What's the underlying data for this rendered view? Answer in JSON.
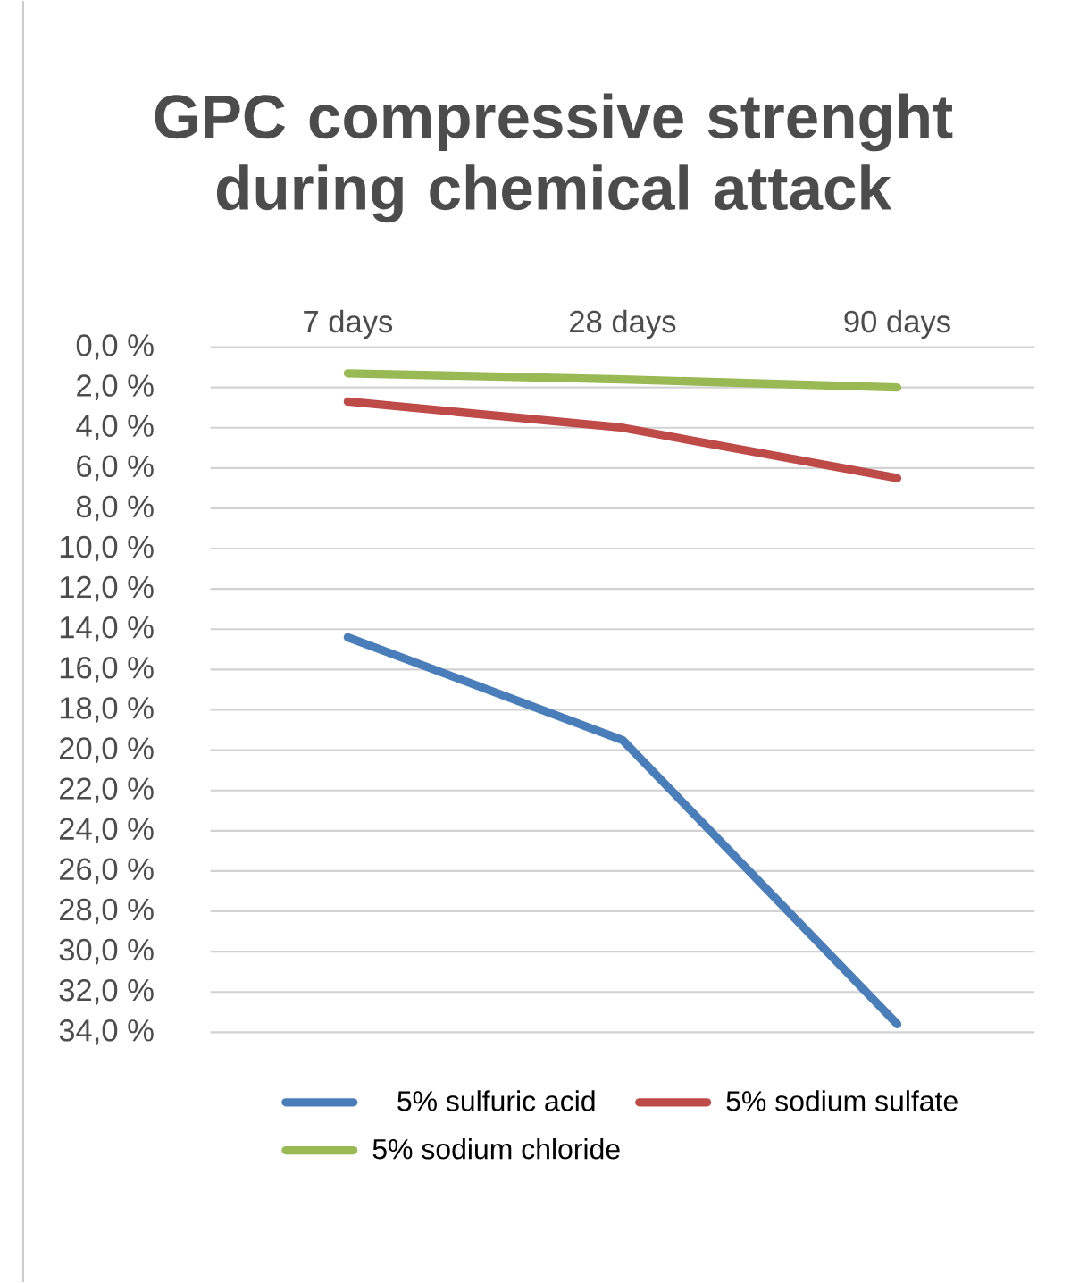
{
  "chart_data": {
    "type": "line",
    "title": "GPC compressive strenght during chemical attack",
    "categories": [
      "7 days",
      "28 days",
      "90 days"
    ],
    "series": [
      {
        "name": "5% sulfuric acid",
        "color": "#4a7ebb",
        "values": [
          14.4,
          19.5,
          33.6
        ]
      },
      {
        "name": "5% sodium sulfate",
        "color": "#be4b48",
        "values": [
          2.7,
          4.0,
          6.5
        ]
      },
      {
        "name": "5% sodium chloride",
        "color": "#98b954",
        "values": [
          1.3,
          1.6,
          2.0
        ]
      }
    ],
    "ylim": [
      34,
      0
    ],
    "yticks": [
      {
        "value": 0,
        "label": "0,0 %"
      },
      {
        "value": 2,
        "label": "2,0 %"
      },
      {
        "value": 4,
        "label": "4,0 %"
      },
      {
        "value": 6,
        "label": "6,0 %"
      },
      {
        "value": 8,
        "label": "8,0 %"
      },
      {
        "value": 10,
        "label": "10,0 %"
      },
      {
        "value": 12,
        "label": "12,0 %"
      },
      {
        "value": 14,
        "label": "14,0 %"
      },
      {
        "value": 16,
        "label": "16,0 %"
      },
      {
        "value": 18,
        "label": "18,0 %"
      },
      {
        "value": 20,
        "label": "20,0 %"
      },
      {
        "value": 22,
        "label": "22,0 %"
      },
      {
        "value": 24,
        "label": "24,0 %"
      },
      {
        "value": 26,
        "label": "26,0 %"
      },
      {
        "value": 28,
        "label": "28,0 %"
      },
      {
        "value": 30,
        "label": "30,0 %"
      },
      {
        "value": 32,
        "label": "32,0 %"
      },
      {
        "value": 34,
        "label": "34,0 %"
      }
    ],
    "grid": "y",
    "legend": "bottom",
    "marker": "none",
    "line_style": "solid"
  }
}
